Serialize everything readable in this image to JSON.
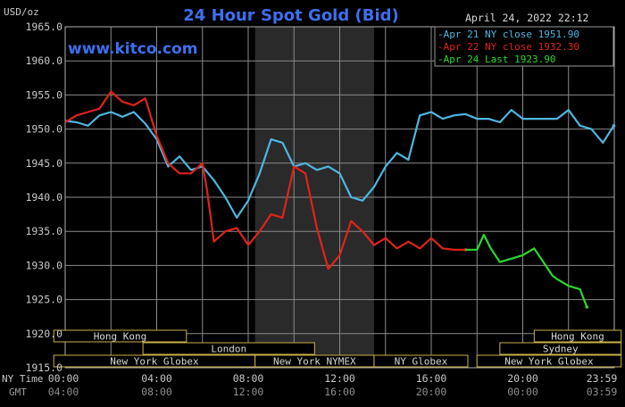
{
  "chart_data": {
    "type": "line",
    "title": "24 Hour Spot Gold (Bid)",
    "watermark": "www.kitco.com",
    "date_label": "April 24, 2022 22:12",
    "ylabel": "USD/oz",
    "ylim": [
      1915.0,
      1965.0
    ],
    "yticks": [
      "1965.0",
      "1960.0",
      "1955.0",
      "1950.0",
      "1945.0",
      "1940.0",
      "1935.0",
      "1930.0",
      "1925.0",
      "1920.0",
      "1915.0"
    ],
    "xlim": [
      0,
      24
    ],
    "x_unit": "hours after 00:00 NY time",
    "x_row_labels": {
      "ny": "NY Time",
      "gmt": "GMT"
    },
    "xticks": [
      {
        "ny": "00:00",
        "gmt": "04:00"
      },
      {
        "ny": "04:00",
        "gmt": "08:00"
      },
      {
        "ny": "08:00",
        "gmt": "12:00"
      },
      {
        "ny": "12:00",
        "gmt": "16:00"
      },
      {
        "ny": "16:00",
        "gmt": "20:00"
      },
      {
        "ny": "20:00",
        "gmt": "00:00"
      },
      {
        "ny": "23:59",
        "gmt": "03:59"
      }
    ],
    "grid": true,
    "shaded_period": [
      8.3,
      13.5
    ],
    "legend_position": "top-right",
    "series": [
      {
        "name": "Apr 21 NY close 1951.90",
        "color": "#4fb6e0",
        "x": [
          0,
          0.5,
          1,
          1.5,
          2,
          2.5,
          3,
          3.5,
          4,
          4.5,
          5,
          5.5,
          6,
          6.5,
          7,
          7.5,
          8,
          8.5,
          9,
          9.5,
          10,
          10.5,
          11,
          11.5,
          12,
          12.5,
          13,
          13.5,
          14,
          14.5,
          15,
          15.5,
          16,
          16.5,
          17,
          17.5,
          18,
          18.5,
          19,
          19.5,
          20,
          20.5,
          21,
          21.5,
          22,
          22.5,
          23,
          23.5,
          23.98
        ],
        "values": [
          1951.2,
          1951.0,
          1950.5,
          1952.0,
          1952.5,
          1951.8,
          1952.5,
          1950.8,
          1948.5,
          1944.5,
          1946.0,
          1944.0,
          1944.5,
          1942.5,
          1940.0,
          1937.0,
          1939.5,
          1943.5,
          1948.5,
          1948.0,
          1944.5,
          1945.0,
          1944.0,
          1944.5,
          1943.5,
          1940.0,
          1939.5,
          1941.5,
          1944.5,
          1946.5,
          1945.5,
          1952.0,
          1952.5,
          1951.5,
          1952.0,
          1952.2,
          1951.5,
          1951.5,
          1951.0,
          1952.8,
          1951.5,
          1951.5,
          1951.5,
          1951.5,
          1952.8,
          1950.5,
          1950.0,
          1948.0,
          1950.5
        ]
      },
      {
        "name": "Apr 22 NY close 1932.30",
        "color": "#e0231a",
        "x": [
          0,
          0.5,
          1,
          1.5,
          2,
          2.5,
          3,
          3.5,
          4,
          4.5,
          5,
          5.5,
          6,
          6.2,
          6.5,
          7,
          7.5,
          8,
          8.5,
          9,
          9.5,
          10,
          10.5,
          11,
          11.5,
          12,
          12.5,
          13,
          13.5,
          14,
          14.5,
          15,
          15.5,
          16,
          16.5,
          17,
          17.5
        ],
        "values": [
          1951.0,
          1952.0,
          1952.5,
          1953.0,
          1955.5,
          1954.0,
          1953.5,
          1954.5,
          1949.0,
          1945.0,
          1943.5,
          1943.5,
          1945.0,
          1941.0,
          1933.5,
          1935.0,
          1935.5,
          1933.0,
          1935.0,
          1937.5,
          1937.0,
          1944.5,
          1943.5,
          1935.5,
          1929.5,
          1931.5,
          1936.5,
          1935.0,
          1933.0,
          1934.0,
          1932.5,
          1933.5,
          1932.5,
          1934.0,
          1932.5,
          1932.3,
          1932.3
        ]
      },
      {
        "name": "Apr 24 Last 1923.90",
        "color": "#2bd92b",
        "x": [
          17.5,
          18.0,
          18.3,
          18.6,
          19.0,
          19.5,
          20.0,
          20.5,
          21.0,
          21.3,
          21.5,
          22.0,
          22.5,
          22.8
        ],
        "values": [
          1932.3,
          1932.3,
          1934.5,
          1932.5,
          1930.5,
          1931.0,
          1931.5,
          1932.5,
          1930.0,
          1928.5,
          1928.0,
          1927.0,
          1926.5,
          1923.9
        ]
      }
    ],
    "sessions": [
      {
        "name": "Hong Kong",
        "row": 0,
        "segments": [
          [
            -0.5,
            5.3
          ]
        ]
      },
      {
        "name": "Hong Kong",
        "row": 0,
        "segments": [
          [
            20.5,
            24.3
          ]
        ]
      },
      {
        "name": "London",
        "row": 1,
        "segments": [
          [
            3.4,
            10.9
          ]
        ]
      },
      {
        "name": "Sydney",
        "row": 1,
        "segments": [
          [
            19.0,
            24.3
          ]
        ]
      },
      {
        "name": "New York Globex",
        "row": 2,
        "segments": [
          [
            -0.5,
            8.3
          ]
        ]
      },
      {
        "name": "New York NYMEX",
        "row": 2,
        "segments": [
          [
            8.3,
            13.5
          ]
        ]
      },
      {
        "name": "NY Globex",
        "row": 2,
        "segments": [
          [
            13.5,
            17.6
          ]
        ]
      },
      {
        "name": "New York Globex",
        "row": 2,
        "segments": [
          [
            18.0,
            24.3
          ]
        ]
      }
    ]
  },
  "colors": {
    "background": "#000000",
    "grid": "#8a8a8a",
    "shade": "#2a2a2a",
    "title": "#3d6ff0",
    "watermark": "#3d6ff0",
    "axis_text": "#c8c8c8",
    "session_box": "#c9b24a",
    "legend_border": "#9a9a9a"
  }
}
